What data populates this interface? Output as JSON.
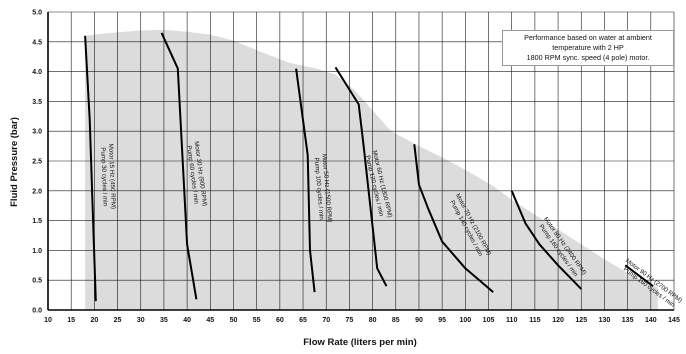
{
  "chart_data": {
    "type": "line",
    "xlabel": "Flow Rate (liters per min)",
    "ylabel": "Fluid Pressure (bar)",
    "xlim": [
      10,
      145
    ],
    "ylim": [
      0,
      5
    ],
    "x_ticks": [
      "10",
      "15",
      "20",
      "25",
      "30",
      "35",
      "40",
      "45",
      "50",
      "55",
      "60",
      "65",
      "70",
      "75",
      "80",
      "85",
      "90",
      "95",
      "100",
      "105",
      "110",
      "115",
      "120",
      "125",
      "130",
      "135",
      "140",
      "145"
    ],
    "y_ticks": [
      "0.0",
      "0.5",
      "1.0",
      "1.5",
      "2.0",
      "2.5",
      "3.0",
      "3.5",
      "4.0",
      "4.5",
      "5.0"
    ],
    "grid": true,
    "annotation": [
      "Performance based on water at ambient",
      "temperature with 2 HP",
      "1800 RPM sync. speed (4 pole) motor."
    ],
    "envelope": {
      "x": [
        18,
        20,
        25,
        30,
        35,
        40,
        45,
        50,
        55,
        62,
        68,
        72,
        76,
        80,
        84,
        90,
        96,
        100,
        106,
        110,
        115,
        120,
        125,
        130,
        135,
        140,
        141.5
      ],
      "y": [
        4.6,
        4.62,
        4.66,
        4.69,
        4.7,
        4.67,
        4.62,
        4.52,
        4.36,
        4.15,
        4.05,
        3.95,
        3.7,
        3.35,
        3.0,
        2.75,
        2.52,
        2.35,
        2.08,
        1.85,
        1.6,
        1.35,
        1.1,
        0.85,
        0.62,
        0.42,
        0.38
      ]
    },
    "series": [
      {
        "labels": [
          "Motor 15 Hz (450 RPM)",
          "Pump 30 cycles / min"
        ],
        "x": [
          18,
          19,
          20.3
        ],
        "y": [
          4.6,
          3.2,
          0.15
        ]
      },
      {
        "labels": [
          "Motor 30 Hz (900 RPM)",
          "Pump 60 cycles / min"
        ],
        "x": [
          34.5,
          38,
          40,
          42
        ],
        "y": [
          4.65,
          4.05,
          1.1,
          0.18
        ]
      },
      {
        "labels": [
          "Motor 50 Hz (1500 RPM)",
          "Pump 100 cycles / min"
        ],
        "x": [
          63.5,
          66,
          66.5,
          67.5
        ],
        "y": [
          4.05,
          2.6,
          1.0,
          0.3
        ]
      },
      {
        "labels": [
          "Motor 60 Hz (1800 RPM)",
          "Pump 120 cycles / min"
        ],
        "x": [
          72,
          77,
          78,
          80,
          81,
          83
        ],
        "y": [
          4.07,
          3.45,
          2.8,
          1.4,
          0.7,
          0.4
        ]
      },
      {
        "labels": [
          "Motor 70 Hz (2100 RPM)",
          "Pump 140 cycles / min"
        ],
        "x": [
          89,
          90,
          92,
          95,
          100,
          106
        ],
        "y": [
          2.78,
          2.1,
          1.7,
          1.15,
          0.7,
          0.3
        ]
      },
      {
        "labels": [
          "Motor 80 Hz (2400 RPM)",
          "Pump 160 cycles / min"
        ],
        "x": [
          110,
          113,
          116,
          120,
          125
        ],
        "y": [
          2.0,
          1.45,
          1.1,
          0.75,
          0.35
        ]
      },
      {
        "labels": [
          "Motor 90 Hz (2700 RPM)",
          "Pump 180 cycles / min"
        ],
        "x": [
          134.5,
          140.5
        ],
        "y": [
          0.75,
          0.4
        ]
      }
    ]
  }
}
